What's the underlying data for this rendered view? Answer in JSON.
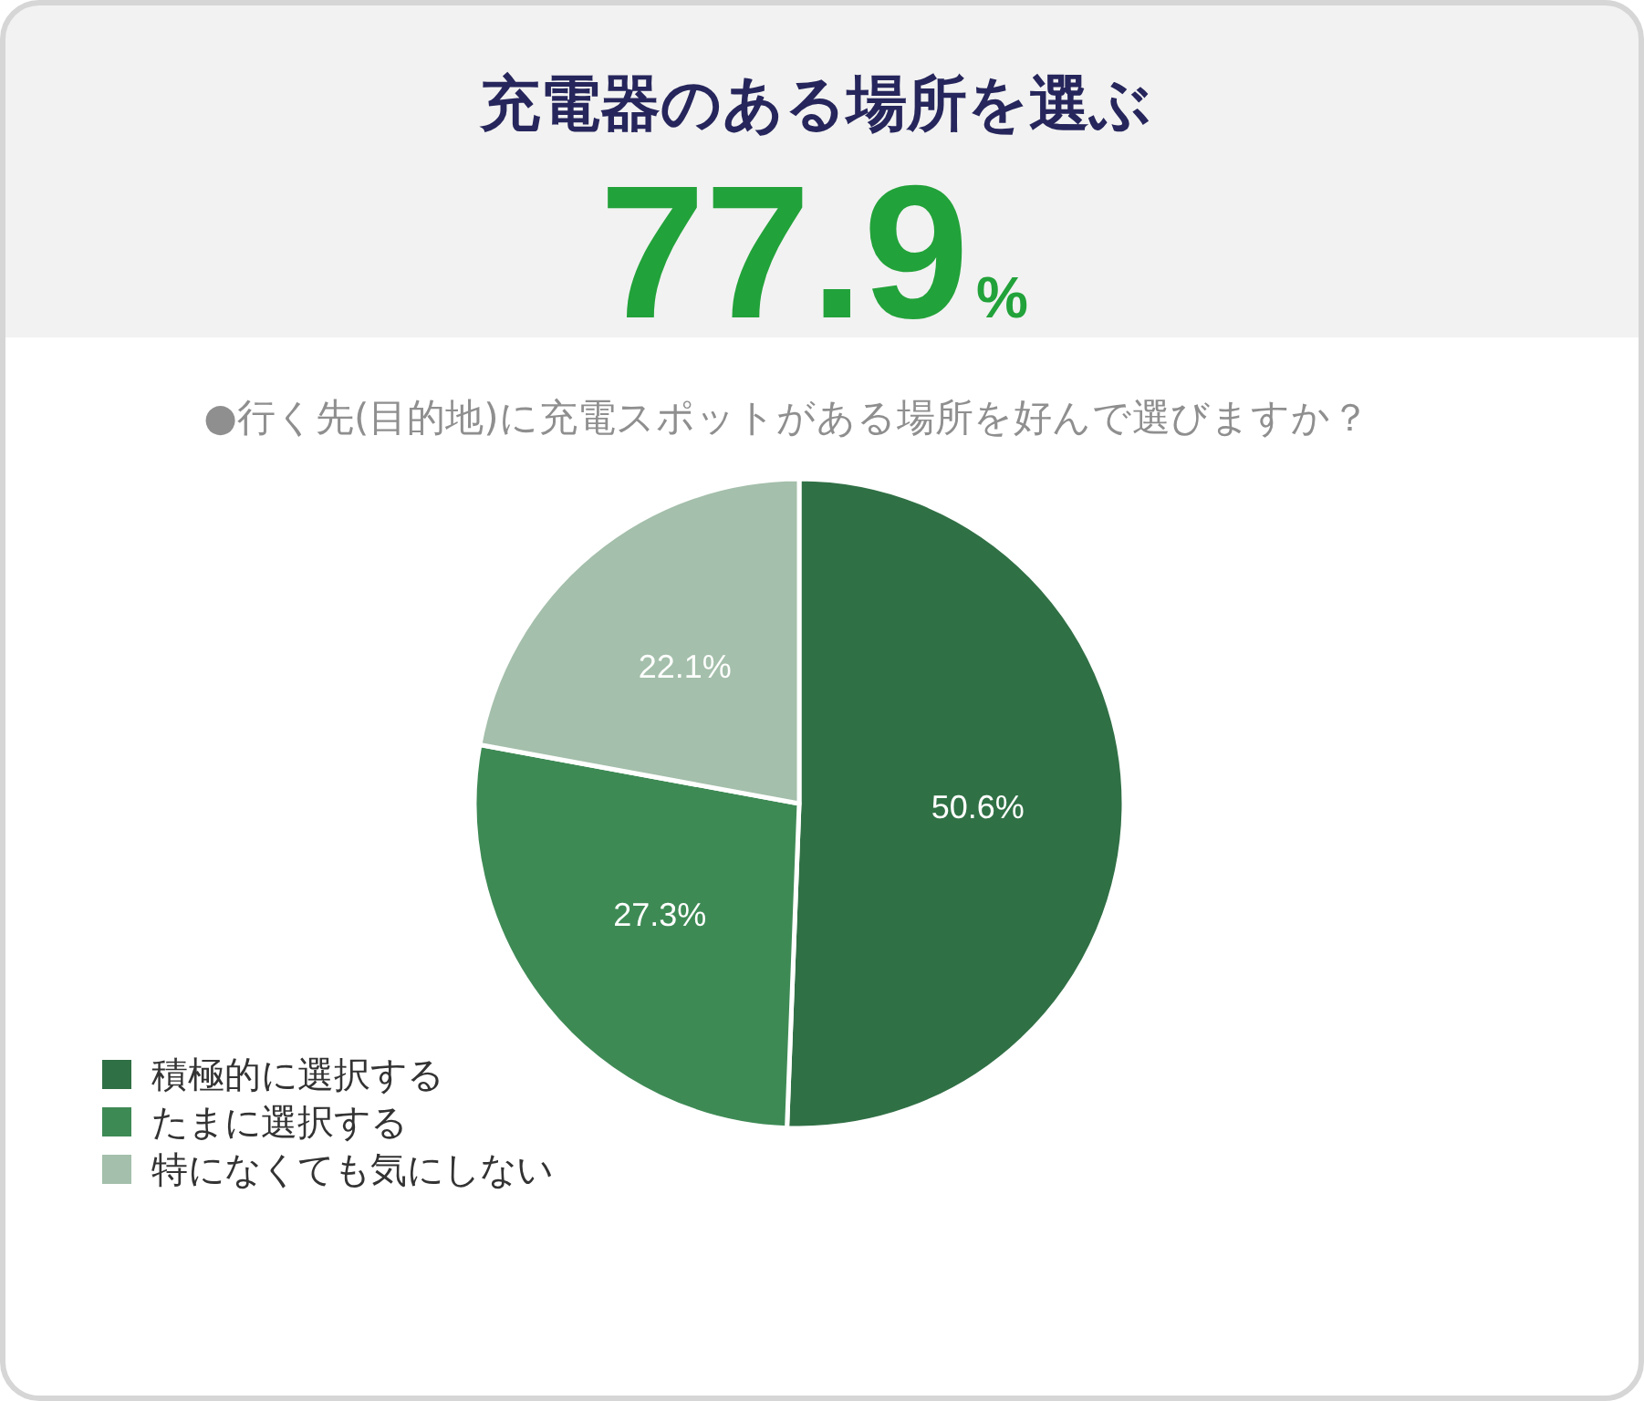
{
  "chart_data": {
    "type": "pie",
    "title": "充電器のある場所を選ぶ",
    "subtitle": "77.9%",
    "annotations": [
      "●行く先(目的地)に充電スポットがある場所を好んで選びますか？"
    ],
    "categories": [
      "積極的に選択する",
      "たまに選択する",
      "特になくても気にしない"
    ],
    "values": [
      50.6,
      27.3,
      22.1
    ],
    "colors": [
      "#307045",
      "#3e8a55",
      "#a4bfab"
    ],
    "value_labels": [
      "50.6%",
      "27.3%",
      "22.1%"
    ],
    "legend": "bottom left"
  }
}
